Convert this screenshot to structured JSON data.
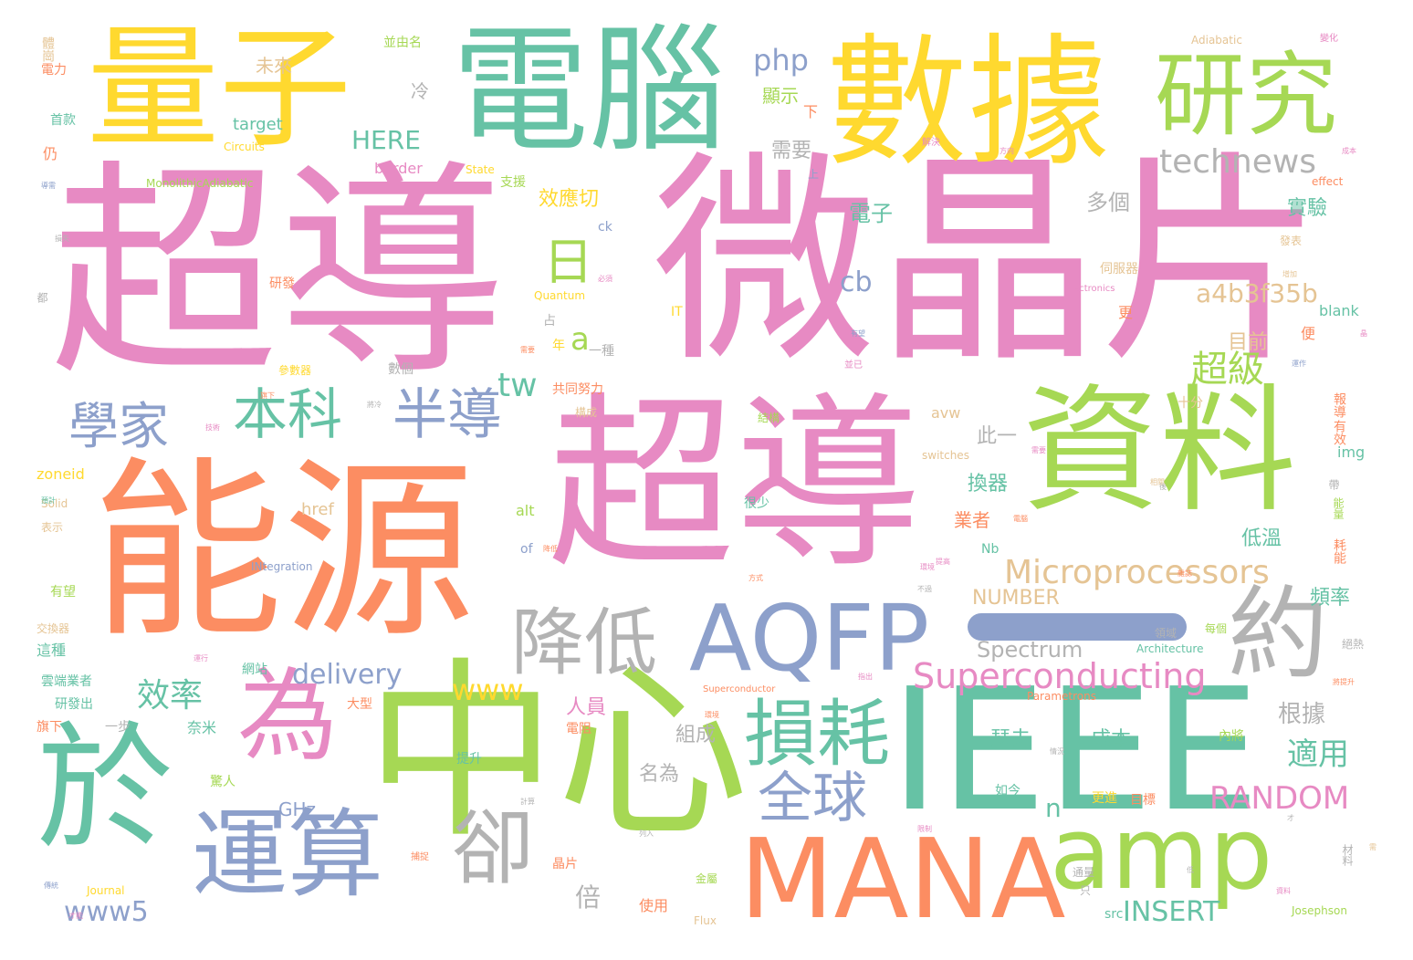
{
  "palette": {
    "pink": "#e78ac3",
    "orange": "#fc8d62",
    "green": "#a6d854",
    "teal": "#66c2a5",
    "yellow": "#ffd92f",
    "blue": "#8da0cb",
    "gray": "#b3b3b3",
    "tan": "#e5c494"
  },
  "words": [
    {
      "text": "超導",
      "color": "pink",
      "size": 250
    },
    {
      "text": "微晶片",
      "color": "pink",
      "size": 245
    },
    {
      "text": "超導",
      "color": "pink",
      "size": 205
    },
    {
      "text": "能源",
      "color": "orange",
      "size": 210
    },
    {
      "text": "中心",
      "color": "green",
      "size": 210
    },
    {
      "text": "數據",
      "color": "yellow",
      "size": 155
    },
    {
      "text": "電腦",
      "color": "teal",
      "size": 150
    },
    {
      "text": "量子",
      "color": "yellow",
      "size": 145
    },
    {
      "text": "資料",
      "color": "green",
      "size": 150
    },
    {
      "text": "IEEE",
      "color": "teal",
      "size": 185
    },
    {
      "text": "於",
      "color": "teal",
      "size": 150
    },
    {
      "text": "MANA",
      "color": "orange",
      "size": 120
    },
    {
      "text": "amp",
      "color": "green",
      "size": 110
    },
    {
      "text": "研究",
      "color": "green",
      "size": 100
    },
    {
      "text": "AQFP",
      "color": "blue",
      "size": 100
    },
    {
      "text": "運算",
      "color": "blue",
      "size": 105
    },
    {
      "text": "為",
      "color": "pink",
      "size": 110
    },
    {
      "text": "損耗",
      "color": "teal",
      "size": 80
    },
    {
      "text": "約",
      "color": "gray",
      "size": 110
    },
    {
      "text": "降低",
      "color": "gray",
      "size": 80
    },
    {
      "text": "卻",
      "color": "gray",
      "size": 90
    },
    {
      "text": "本科",
      "color": "teal",
      "size": 60
    },
    {
      "text": "學家",
      "color": "blue",
      "size": 55
    },
    {
      "text": "半導",
      "color": "blue",
      "size": 60
    },
    {
      "text": "全球",
      "color": "blue",
      "size": 60
    },
    {
      "text": "日",
      "color": "green",
      "size": 55
    },
    {
      "text": "technews",
      "color": "gray",
      "size": 36
    },
    {
      "text": "Microprocessors",
      "color": "tan",
      "size": 36
    },
    {
      "text": "Superconducting",
      "color": "pink",
      "size": 38
    },
    {
      "text": "超級",
      "color": "green",
      "size": 40
    },
    {
      "text": "a4b3f35b",
      "color": "tan",
      "size": 28
    },
    {
      "text": "www5",
      "color": "blue",
      "size": 30
    },
    {
      "text": "www",
      "color": "yellow",
      "size": 32
    },
    {
      "text": "delivery",
      "color": "blue",
      "size": 30
    },
    {
      "text": "效率",
      "color": "teal",
      "size": 36
    },
    {
      "text": "RANDOM",
      "color": "pink",
      "size": 34
    },
    {
      "text": "INSERT",
      "color": "teal",
      "size": 30
    },
    {
      "text": "適用",
      "color": "teal",
      "size": 34
    },
    {
      "text": "tw",
      "color": "teal",
      "size": 36
    },
    {
      "text": "php",
      "color": "blue",
      "size": 32
    },
    {
      "text": "HERE",
      "color": "teal",
      "size": 28
    },
    {
      "text": "cb",
      "color": "blue",
      "size": 30
    },
    {
      "text": "a",
      "color": "green",
      "size": 34
    },
    {
      "text": "n",
      "color": "teal",
      "size": 28
    },
    {
      "text": "Spectrum",
      "color": "gray",
      "size": 24
    },
    {
      "text": "NUMBER",
      "color": "tan",
      "size": 22
    },
    {
      "text": "多個",
      "color": "gray",
      "size": 24
    },
    {
      "text": "效應切",
      "color": "yellow",
      "size": 22
    },
    {
      "text": "電子",
      "color": "teal",
      "size": 24
    },
    {
      "text": "實驗",
      "color": "teal",
      "size": 22
    },
    {
      "text": "根據",
      "color": "gray",
      "size": 26
    },
    {
      "text": "倍",
      "color": "gray",
      "size": 28
    },
    {
      "text": "未來",
      "color": "tan",
      "size": 20
    },
    {
      "text": "需要",
      "color": "gray",
      "size": 22
    },
    {
      "text": "顯示",
      "color": "green",
      "size": 20
    },
    {
      "text": "冷",
      "color": "gray",
      "size": 20
    },
    {
      "text": "此一",
      "color": "gray",
      "size": 22
    },
    {
      "text": "換器",
      "color": "teal",
      "size": 22
    },
    {
      "text": "業者",
      "color": "orange",
      "size": 20
    },
    {
      "text": "低溫",
      "color": "teal",
      "size": 22
    },
    {
      "text": "頻率",
      "color": "teal",
      "size": 22
    },
    {
      "text": "目前",
      "color": "tan",
      "size": 22
    },
    {
      "text": "人員",
      "color": "pink",
      "size": 22
    },
    {
      "text": "組成",
      "color": "gray",
      "size": 22
    },
    {
      "text": "名為",
      "color": "gray",
      "size": 22
    },
    {
      "text": "瑟夫",
      "color": "teal",
      "size": 22
    },
    {
      "text": "成本",
      "color": "teal",
      "size": 22
    },
    {
      "text": "GHz",
      "color": "blue",
      "size": 20
    },
    {
      "text": "target",
      "color": "teal",
      "size": 18
    },
    {
      "text": "border",
      "color": "pink",
      "size": 16
    },
    {
      "text": "img",
      "color": "teal",
      "size": 16
    },
    {
      "text": "href",
      "color": "tan",
      "size": 18
    },
    {
      "text": "alt",
      "color": "green",
      "size": 16
    },
    {
      "text": "zoneid",
      "color": "yellow",
      "size": 16
    },
    {
      "text": "blank",
      "color": "teal",
      "size": 16
    },
    {
      "text": "src",
      "color": "teal",
      "size": 14
    },
    {
      "text": "Nb",
      "color": "teal",
      "size": 14
    },
    {
      "text": "avw",
      "color": "tan",
      "size": 16
    },
    {
      "text": "Josephson",
      "color": "green",
      "size": 12
    },
    {
      "text": "Flux",
      "color": "tan",
      "size": 12
    },
    {
      "text": "Journal",
      "color": "yellow",
      "size": 12
    },
    {
      "text": "effect",
      "color": "orange",
      "size": 12
    },
    {
      "text": "switches",
      "color": "tan",
      "size": 12
    },
    {
      "text": "Architecture",
      "color": "teal",
      "size": 12
    },
    {
      "text": "Parametrons",
      "color": "orange",
      "size": 12
    },
    {
      "text": "Superconductor",
      "color": "orange",
      "size": 10
    },
    {
      "text": "Quantum",
      "color": "yellow",
      "size": 12
    },
    {
      "text": "Electronics",
      "color": "pink",
      "size": 10
    },
    {
      "text": "IT",
      "color": "yellow",
      "size": 14
    },
    {
      "text": "ck",
      "color": "blue",
      "size": 14
    },
    {
      "text": "State",
      "color": "yellow",
      "size": 12
    },
    {
      "text": "MonolithicAdiabatic",
      "color": "green",
      "size": 12
    },
    {
      "text": "Circuits",
      "color": "yellow",
      "size": 12
    },
    {
      "text": "Adiabatic",
      "color": "tan",
      "size": 12
    },
    {
      "text": "INtegration",
      "color": "blue",
      "size": 12
    },
    {
      "text": "Solid",
      "color": "tan",
      "size": 12
    },
    {
      "text": "of",
      "color": "blue",
      "size": 14
    },
    {
      "text": "體崗",
      "color": "tan",
      "size": 14
    },
    {
      "text": "並由名",
      "color": "green",
      "size": 14
    },
    {
      "text": "電力",
      "color": "orange",
      "size": 14
    },
    {
      "text": "首款",
      "color": "teal",
      "size": 14
    },
    {
      "text": "仍",
      "color": "orange",
      "size": 16
    },
    {
      "text": "支援",
      "color": "green",
      "size": 14
    },
    {
      "text": "研發",
      "color": "orange",
      "size": 14
    },
    {
      "text": "占",
      "color": "gray",
      "size": 14
    },
    {
      "text": "年",
      "color": "yellow",
      "size": 14
    },
    {
      "text": "一種",
      "color": "gray",
      "size": 14
    },
    {
      "text": "數個",
      "color": "gray",
      "size": 14
    },
    {
      "text": "共同努力",
      "color": "orange",
      "size": 14
    },
    {
      "text": "更",
      "color": "orange",
      "size": 16
    },
    {
      "text": "便",
      "color": "orange",
      "size": 16
    },
    {
      "text": "十分",
      "color": "tan",
      "size": 14
    },
    {
      "text": "報導",
      "color": "orange",
      "size": 14
    },
    {
      "text": "有效",
      "color": "orange",
      "size": 14
    },
    {
      "text": "伺服器",
      "color": "tan",
      "size": 14
    },
    {
      "text": "發表",
      "color": "tan",
      "size": 12
    },
    {
      "text": "下",
      "color": "orange",
      "size": 16
    },
    {
      "text": "上",
      "color": "blue",
      "size": 12
    },
    {
      "text": "結構",
      "color": "green",
      "size": 12
    },
    {
      "text": "構成",
      "color": "tan",
      "size": 12
    },
    {
      "text": "很少",
      "color": "teal",
      "size": 14
    },
    {
      "text": "網站",
      "color": "teal",
      "size": 14
    },
    {
      "text": "雲端業者",
      "color": "teal",
      "size": 14
    },
    {
      "text": "研發出",
      "color": "teal",
      "size": 14
    },
    {
      "text": "旗下",
      "color": "orange",
      "size": 14
    },
    {
      "text": "一步",
      "color": "gray",
      "size": 14
    },
    {
      "text": "奈米",
      "color": "teal",
      "size": 16
    },
    {
      "text": "驚人",
      "color": "green",
      "size": 14
    },
    {
      "text": "大型",
      "color": "orange",
      "size": 14
    },
    {
      "text": "電阻",
      "color": "orange",
      "size": 14
    },
    {
      "text": "提升",
      "color": "teal",
      "size": 14
    },
    {
      "text": "晶片",
      "color": "orange",
      "size": 14
    },
    {
      "text": "使用",
      "color": "orange",
      "size": 16
    },
    {
      "text": "內將",
      "color": "green",
      "size": 14
    },
    {
      "text": "如今",
      "color": "teal",
      "size": 14
    },
    {
      "text": "目標",
      "color": "orange",
      "size": 14
    },
    {
      "text": "更進",
      "color": "yellow",
      "size": 14
    },
    {
      "text": "領域",
      "color": "gray",
      "size": 12
    },
    {
      "text": "耗能",
      "color": "orange",
      "size": 14
    },
    {
      "text": "能量",
      "color": "green",
      "size": 12
    },
    {
      "text": "每個",
      "color": "green",
      "size": 12
    },
    {
      "text": "絕熱",
      "color": "gray",
      "size": 12
    },
    {
      "text": "材料",
      "color": "gray",
      "size": 12
    },
    {
      "text": "這種",
      "color": "teal",
      "size": 16
    },
    {
      "text": "有望",
      "color": "green",
      "size": 14
    },
    {
      "text": "交換器",
      "color": "tan",
      "size": 12
    },
    {
      "text": "參數器",
      "color": "yellow",
      "size": 12
    },
    {
      "text": "金屬",
      "color": "green",
      "size": 12
    },
    {
      "text": "通量",
      "color": "gray",
      "size": 12
    },
    {
      "text": "只",
      "color": "gray",
      "size": 12
    },
    {
      "text": "表示",
      "color": "tan",
      "size": 12
    },
    {
      "text": "帶",
      "color": "gray",
      "size": 12
    },
    {
      "text": "都",
      "color": "gray",
      "size": 12
    },
    {
      "text": "變化",
      "color": "pink",
      "size": 10
    },
    {
      "text": "解決",
      "color": "pink",
      "size": 10
    },
    {
      "text": "方向",
      "color": "pink",
      "size": 8
    },
    {
      "text": "成本",
      "color": "pink",
      "size": 8
    },
    {
      "text": "導需",
      "color": "blue",
      "size": 8
    },
    {
      "text": "增加",
      "color": "tan",
      "size": 8
    },
    {
      "text": "必須",
      "color": "pink",
      "size": 8
    },
    {
      "text": "有望",
      "color": "blue",
      "size": 8
    },
    {
      "text": "運作",
      "color": "blue",
      "size": 8
    },
    {
      "text": "指出",
      "color": "pink",
      "size": 8
    },
    {
      "text": "相關",
      "color": "tan",
      "size": 8
    },
    {
      "text": "情況",
      "color": "gray",
      "size": 8
    },
    {
      "text": "計算",
      "color": "gray",
      "size": 8
    },
    {
      "text": "列入",
      "color": "gray",
      "size": 8
    },
    {
      "text": "限制",
      "color": "pink",
      "size": 8
    },
    {
      "text": "環境",
      "color": "orange",
      "size": 8
    },
    {
      "text": "捕捉",
      "color": "orange",
      "size": 10
    },
    {
      "text": "雜誌",
      "color": "orange",
      "size": 8
    },
    {
      "text": "電腦",
      "color": "orange",
      "size": 8
    },
    {
      "text": "不過",
      "color": "gray",
      "size": 8
    },
    {
      "text": "方式",
      "color": "orange",
      "size": 8
    },
    {
      "text": "損失",
      "color": "gray",
      "size": 8
    },
    {
      "text": "溫度",
      "color": "pink",
      "size": 8
    },
    {
      "text": "技術",
      "color": "pink",
      "size": 8
    },
    {
      "text": "將冷",
      "color": "gray",
      "size": 8
    },
    {
      "text": "降低",
      "color": "orange",
      "size": 8
    },
    {
      "text": "傳統",
      "color": "blue",
      "size": 8
    },
    {
      "text": "資料",
      "color": "pink",
      "size": 8
    },
    {
      "text": "提高",
      "color": "pink",
      "size": 8
    },
    {
      "text": "預計",
      "color": "teal",
      "size": 8
    },
    {
      "text": "並已",
      "color": "pink",
      "size": 10
    },
    {
      "text": "運行",
      "color": "pink",
      "size": 8
    },
    {
      "text": "將提升",
      "color": "orange",
      "size": 8
    },
    {
      "text": "後",
      "color": "gray",
      "size": 8
    },
    {
      "text": "晶",
      "color": "pink",
      "size": 8
    },
    {
      "text": "才",
      "color": "gray",
      "size": 8
    },
    {
      "text": "低",
      "color": "gray",
      "size": 8
    },
    {
      "text": "需",
      "color": "tan",
      "size": 8
    },
    {
      "text": "才能",
      "color": "pink",
      "size": 8
    },
    {
      "text": "旗下",
      "color": "orange",
      "size": 8
    },
    {
      "text": "需要",
      "color": "orange",
      "size": 8
    },
    {
      "text": "需要",
      "color": "pink",
      "size": 8
    },
    {
      "text": "環境",
      "color": "pink",
      "size": 8
    },
    {
      "text": "研究",
      "color": "orange",
      "size": 8
    }
  ]
}
